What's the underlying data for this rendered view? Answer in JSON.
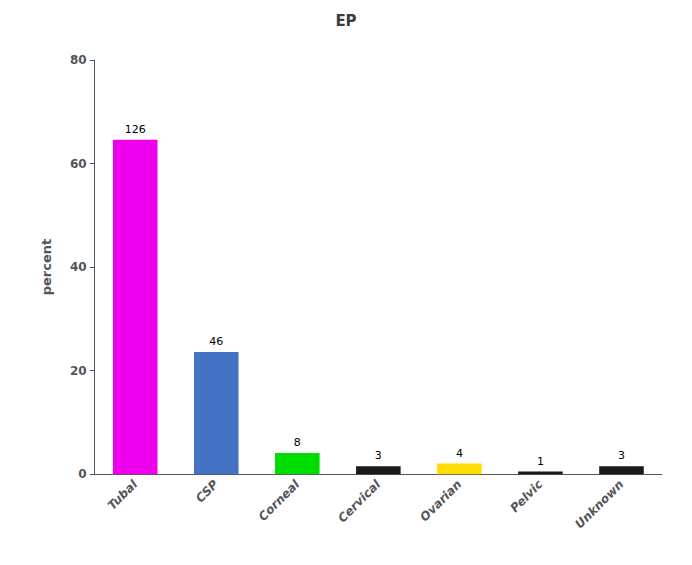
{
  "chart_data": {
    "type": "bar",
    "title": "EP",
    "categories": [
      "Tubal",
      "CSP",
      "Corneal",
      "Cervical",
      "Ovarian",
      "Pelvic",
      "Unknown"
    ],
    "values": [
      64.6,
      23.6,
      4.1,
      1.54,
      2.05,
      0.51,
      1.54
    ],
    "counts": [
      126,
      46,
      8,
      3,
      4,
      1,
      3
    ],
    "colors": [
      "#EE00EE",
      "#4472C4",
      "#00DD00",
      "#1A1A1A",
      "#FFDD00",
      "#1A1A1A",
      "#1A1A1A"
    ],
    "ylabel": "percent",
    "ylim": [
      0,
      80
    ],
    "yticks": [
      0,
      20,
      40,
      60,
      80
    ],
    "grid": false
  }
}
